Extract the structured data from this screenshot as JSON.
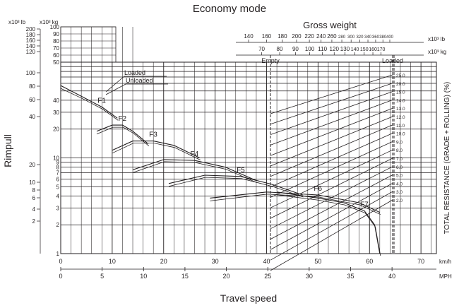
{
  "chart_data": {
    "type": "line",
    "title": "Economy mode",
    "xlabel": "Travel speed",
    "ylabel": "Rimpull",
    "right_label": "TOTAL RESISTANCE (GRADE + ROLLING) (%)",
    "scale": "log",
    "x_units": [
      "km/h",
      "MPH"
    ],
    "x_ticks_kmh": [
      "0",
      "10",
      "20",
      "30",
      "40",
      "50",
      "60",
      "70"
    ],
    "x_ticks_mph": [
      "0",
      "5",
      "10",
      "15",
      "20",
      "25",
      "30",
      "35",
      "40"
    ],
    "xlim_kmh": [
      0,
      73
    ],
    "y_units": [
      "x10³ lb",
      "x10³ kg"
    ],
    "y_ticks_lb": [
      "200",
      "180",
      "160",
      "140",
      "120",
      "100",
      "80",
      "60",
      "40",
      "20",
      "10",
      "8",
      "6",
      "4",
      "2"
    ],
    "y_ticks_kg": [
      "100",
      "90",
      "80",
      "70",
      "60",
      "50",
      "40",
      "30",
      "20",
      "10",
      "9",
      "8",
      "7",
      "6",
      "5",
      "4",
      "3",
      "2",
      "1"
    ],
    "gross_weight": {
      "label": "Gross weight",
      "units": [
        "x10³ lb",
        "x10³ kg"
      ],
      "lb_ticks": [
        "140",
        "160",
        "180",
        "200",
        "220",
        "240",
        "260",
        "280",
        "300",
        "320",
        "340",
        "360",
        "380",
        "400"
      ],
      "kg_ticks": [
        "70",
        "80",
        "90",
        "100",
        "110",
        "120",
        "130",
        "140",
        "150",
        "160",
        "170"
      ],
      "empty_label": "Empty",
      "loaded_label": "Loaded"
    },
    "resistance_percent": [
      "25.0",
      "20.0",
      "15.0",
      "14.0",
      "13.0",
      "12.0",
      "11.0",
      "10.0",
      "9.0",
      "8.0",
      "7.0",
      "6.0",
      "5.0",
      "4.0",
      "3.0",
      "2.0"
    ],
    "legend": {
      "loaded": "Loaded",
      "unloaded": "Unloaded"
    },
    "series": [
      {
        "name": "F1",
        "x_kmh": [
          0,
          4,
          8,
          11
        ],
        "y_kg": [
          57,
          44,
          34,
          26
        ]
      },
      {
        "name": "F2",
        "x_kmh": [
          7,
          10,
          12,
          14,
          17
        ],
        "y_kg": [
          19,
          22,
          22,
          19,
          14
        ]
      },
      {
        "name": "F3",
        "x_kmh": [
          10,
          14,
          18,
          22,
          27
        ],
        "y_kg": [
          12,
          15,
          15,
          13.5,
          10
        ]
      },
      {
        "name": "F4",
        "x_kmh": [
          14,
          20,
          26,
          32,
          38
        ],
        "y_kg": [
          7.5,
          9.6,
          9.4,
          8,
          5.8
        ]
      },
      {
        "name": "F5",
        "x_kmh": [
          21,
          28,
          35,
          41,
          47
        ],
        "y_kg": [
          5.4,
          6.6,
          6.4,
          5.3,
          4.1
        ]
      },
      {
        "name": "F6",
        "x_kmh": [
          29,
          40,
          50,
          58,
          62
        ],
        "y_kg": [
          3.8,
          4.4,
          4.1,
          3.4,
          2.7
        ]
      },
      {
        "name": "F7",
        "x_kmh": [
          42,
          50,
          55,
          59,
          61,
          62
        ],
        "y_kg": [
          4.4,
          3.8,
          3.4,
          2.8,
          2.0,
          1.0
        ]
      }
    ]
  }
}
